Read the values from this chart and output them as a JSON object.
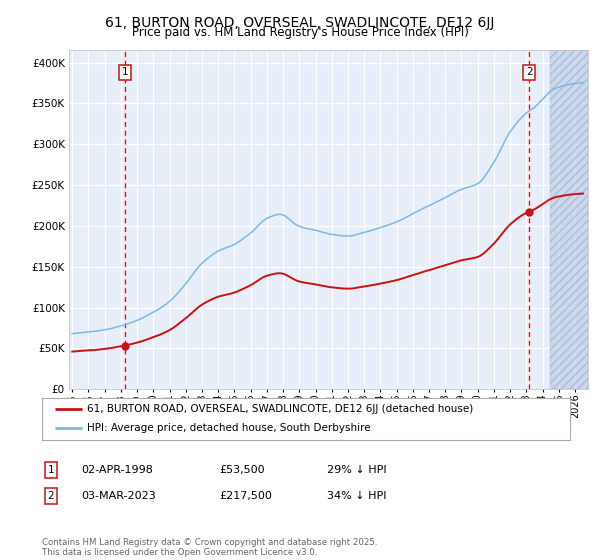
{
  "title": "61, BURTON ROAD, OVERSEAL, SWADLINCOTE, DE12 6JJ",
  "subtitle": "Price paid vs. HM Land Registry's House Price Index (HPI)",
  "ylabel_vals": [
    0,
    50000,
    100000,
    150000,
    200000,
    250000,
    300000,
    350000,
    400000
  ],
  "ylim": [
    0,
    415000
  ],
  "xlim_start": 1994.8,
  "xlim_end": 2026.8,
  "sale1_date": 1998.25,
  "sale1_price": 53500,
  "sale1_label": "1",
  "sale2_date": 2023.17,
  "sale2_price": 217500,
  "sale2_label": "2",
  "hpi_color": "#7ab8e8",
  "price_color": "#cc1111",
  "legend_label1": "61, BURTON ROAD, OVERSEAL, SWADLINCOTE, DE12 6JJ (detached house)",
  "legend_label2": "HPI: Average price, detached house, South Derbyshire",
  "footer": "Contains HM Land Registry data © Crown copyright and database right 2025.\nThis data is licensed under the Open Government Licence v3.0.",
  "background_color": "#ffffff",
  "plot_bg_color": "#e8eef8",
  "hatch_color": "#c0d0e8"
}
